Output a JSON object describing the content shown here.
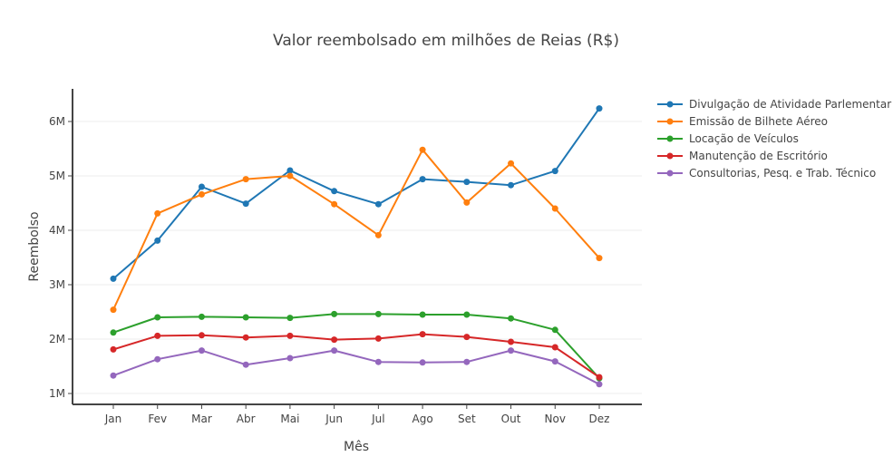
{
  "chart_data": {
    "type": "line",
    "title": "Valor reembolsado em milhões de Reias (R$)",
    "xlabel": "Mês",
    "ylabel": "Reembolso",
    "categories": [
      "Jan",
      "Fev",
      "Mar",
      "Abr",
      "Mai",
      "Jun",
      "Jul",
      "Ago",
      "Set",
      "Out",
      "Nov",
      "Dez"
    ],
    "ylim": [
      800000,
      6600000
    ],
    "yticks": [
      1000000,
      2000000,
      3000000,
      4000000,
      5000000,
      6000000
    ],
    "ytick_labels": [
      "1M",
      "2M",
      "3M",
      "4M",
      "5M",
      "6M"
    ],
    "grid": true,
    "legend_position": "top-right",
    "series": [
      {
        "name": "Divulgação de Atividade Parlementar",
        "color": "#1f77b4",
        "values": [
          3110000,
          3810000,
          4800000,
          4490000,
          5100000,
          4720000,
          4480000,
          4940000,
          4890000,
          4830000,
          5090000,
          6240000
        ]
      },
      {
        "name": "Emissão de Bilhete Aéreo",
        "color": "#ff7f0e",
        "values": [
          2540000,
          4310000,
          4660000,
          4940000,
          5000000,
          4480000,
          3910000,
          5480000,
          4510000,
          5230000,
          4400000,
          3490000
        ]
      },
      {
        "name": "Locação de Veículos",
        "color": "#2ca02c",
        "values": [
          2120000,
          2400000,
          2410000,
          2400000,
          2390000,
          2460000,
          2460000,
          2450000,
          2450000,
          2380000,
          2170000,
          1280000
        ]
      },
      {
        "name": "Manutenção de Escritório",
        "color": "#d62728",
        "values": [
          1810000,
          2060000,
          2070000,
          2030000,
          2060000,
          1990000,
          2010000,
          2090000,
          2040000,
          1950000,
          1850000,
          1300000
        ]
      },
      {
        "name": "Consultorias, Pesq. e Trab. Técnico",
        "color": "#9467bd",
        "values": [
          1330000,
          1630000,
          1790000,
          1530000,
          1650000,
          1790000,
          1580000,
          1570000,
          1580000,
          1790000,
          1590000,
          1170000
        ]
      }
    ]
  }
}
